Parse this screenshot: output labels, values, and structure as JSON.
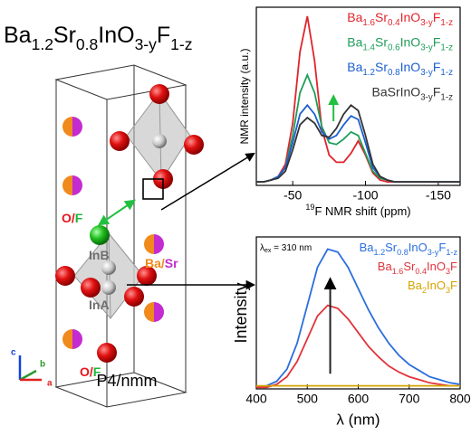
{
  "title": "Ba1.2Sr0.8InO3-yF1-z",
  "structure": {
    "labels": [
      {
        "text": "O/F",
        "colors": [
          "#e8141b",
          "#1fb83a"
        ]
      },
      {
        "text": "InB",
        "colors": [
          "#6e6e6e"
        ]
      },
      {
        "text": "Ba/Sr",
        "colors": [
          "#f08a1c",
          "#c42bd0"
        ]
      },
      {
        "text": "InA",
        "colors": [
          "#6e6e6e"
        ]
      },
      {
        "text": "O/F",
        "colors": [
          "#e8141b",
          "#1fb83a"
        ]
      }
    ],
    "space_group": "P4/nmm",
    "axes": [
      {
        "text": "c",
        "color": "#1040e0"
      },
      {
        "text": "b",
        "color": "#2a9a2a"
      },
      {
        "text": "a",
        "color": "#e02020"
      }
    ]
  },
  "chart_data": [
    {
      "type": "line",
      "x_label": "19F NMR shift (ppm)",
      "y_label": "NMR intensity (a.u.)",
      "x": [
        -25,
        -30,
        -35,
        -40,
        -45,
        -50,
        -55,
        -60,
        -65,
        -70,
        -75,
        -80,
        -85,
        -90,
        -95,
        -100,
        -105,
        -110,
        -115,
        -120,
        -125,
        -130,
        -135,
        -140,
        -145,
        -150,
        -155,
        -160,
        -165
      ],
      "xlim": [
        -25,
        -165
      ],
      "xticks": [
        -50,
        -100,
        -150
      ],
      "ylim": [
        0,
        1
      ],
      "legend_location": "upper right",
      "series": [
        {
          "name": "Ba1.6Sr0.4InO3-yF1-z",
          "color": "#e0242c",
          "values": [
            0.02,
            0.02,
            0.03,
            0.05,
            0.12,
            0.35,
            0.75,
            0.95,
            0.7,
            0.32,
            0.17,
            0.13,
            0.13,
            0.18,
            0.25,
            0.17,
            0.07,
            0.03,
            0.02,
            0.02,
            0.02,
            0.02,
            0.02,
            0.02,
            0.02,
            0.02,
            0.02,
            0.02,
            0.02
          ]
        },
        {
          "name": "Ba1.4Sr0.6InO3-yF1-z",
          "color": "#1f9e5a",
          "values": [
            0.02,
            0.02,
            0.03,
            0.05,
            0.1,
            0.28,
            0.52,
            0.62,
            0.52,
            0.33,
            0.24,
            0.23,
            0.26,
            0.3,
            0.28,
            0.18,
            0.08,
            0.04,
            0.03,
            0.02,
            0.02,
            0.02,
            0.02,
            0.02,
            0.02,
            0.02,
            0.02,
            0.02,
            0.02
          ]
        },
        {
          "name": "Ba1.2Sr0.8InO3-yF1-z",
          "color": "#1c5fd0",
          "values": [
            0.02,
            0.02,
            0.03,
            0.05,
            0.1,
            0.24,
            0.4,
            0.45,
            0.4,
            0.3,
            0.26,
            0.28,
            0.34,
            0.39,
            0.37,
            0.24,
            0.1,
            0.05,
            0.03,
            0.02,
            0.02,
            0.02,
            0.02,
            0.02,
            0.02,
            0.02,
            0.02,
            0.02,
            0.02
          ]
        },
        {
          "name": "BaSrInO3-yF1-z",
          "color": "#333333",
          "values": [
            0.02,
            0.02,
            0.03,
            0.04,
            0.08,
            0.2,
            0.34,
            0.38,
            0.35,
            0.28,
            0.27,
            0.32,
            0.4,
            0.45,
            0.42,
            0.28,
            0.12,
            0.05,
            0.03,
            0.02,
            0.02,
            0.02,
            0.02,
            0.02,
            0.02,
            0.02,
            0.02,
            0.02,
            0.02
          ]
        }
      ]
    },
    {
      "type": "line",
      "x_label": "λ (nm)",
      "y_label": "Intensity",
      "annotation": "λex = 310 nm",
      "x": [
        400,
        420,
        440,
        460,
        480,
        500,
        520,
        540,
        560,
        580,
        600,
        620,
        640,
        660,
        680,
        700,
        720,
        740,
        760,
        780,
        800
      ],
      "xlim": [
        400,
        800
      ],
      "xticks": [
        400,
        500,
        600,
        700,
        800
      ],
      "ylim": [
        0,
        1
      ],
      "legend_location": "upper right",
      "series": [
        {
          "name": "Ba1.2Sr0.8InO3-yF1-z",
          "color": "#2a6fdc",
          "values": [
            0.01,
            0.02,
            0.05,
            0.13,
            0.3,
            0.55,
            0.8,
            0.92,
            0.9,
            0.8,
            0.66,
            0.52,
            0.4,
            0.3,
            0.22,
            0.16,
            0.12,
            0.08,
            0.06,
            0.04,
            0.03
          ]
        },
        {
          "name": "Ba1.6Sr0.4InO3F",
          "color": "#e0343c",
          "values": [
            0.01,
            0.01,
            0.03,
            0.08,
            0.18,
            0.33,
            0.48,
            0.55,
            0.53,
            0.46,
            0.37,
            0.28,
            0.21,
            0.15,
            0.11,
            0.08,
            0.06,
            0.04,
            0.03,
            0.02,
            0.02
          ]
        },
        {
          "name": "Ba2InO3F",
          "color": "#d4a400",
          "values": [
            0.02,
            0.02,
            0.02,
            0.02,
            0.02,
            0.02,
            0.02,
            0.02,
            0.02,
            0.02,
            0.02,
            0.02,
            0.02,
            0.02,
            0.02,
            0.02,
            0.02,
            0.02,
            0.02,
            0.02,
            0.02
          ]
        }
      ]
    }
  ]
}
